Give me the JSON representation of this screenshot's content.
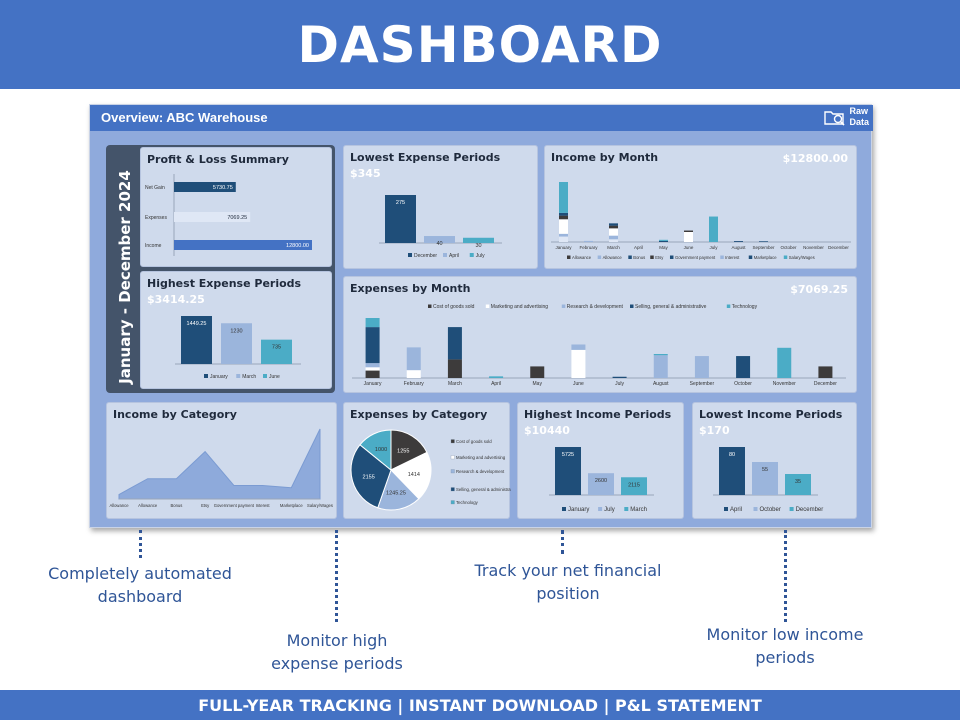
{
  "header": {
    "title": "DASHBOARD"
  },
  "footer": {
    "text": "FULL-YEAR TRACKING | INSTANT DOWNLOAD | P&L STATEMENT"
  },
  "dashboard": {
    "title": "Overview:  ABC Warehouse",
    "raw_data": {
      "line1": "Raw",
      "line2": "Data",
      "icon": "folder-search-icon"
    },
    "period": "January - December 2024"
  },
  "accent": "#4472c4",
  "colors": {
    "navy": "#1f4e79",
    "light": "#9bb5dc",
    "teal": "#4bacc6",
    "dark": "#3d3b3b",
    "pale": "#dfe7f5",
    "white": "#ffffff"
  },
  "pl_summary": {
    "title": "Profit & Loss Summary",
    "chart_data": {
      "type": "bar",
      "orientation": "horizontal",
      "categories": [
        "Net Gain",
        "Expenses",
        "Income"
      ],
      "values": [
        5730.75,
        7069.25,
        12800.0
      ],
      "labels": [
        "5730.75",
        "7069.25",
        "12800.00"
      ]
    }
  },
  "highest_expense": {
    "title": "Highest Expense Periods",
    "value": "$3414.25",
    "chart_data": {
      "type": "bar",
      "categories": [
        "January",
        "March",
        "June"
      ],
      "values": [
        1449.25,
        1230,
        735
      ],
      "labels": [
        "1449.25",
        "1230",
        "735"
      ]
    }
  },
  "lowest_expense": {
    "title": "Lowest Expense Periods",
    "value": "$345",
    "chart_data": {
      "type": "bar",
      "categories": [
        "December",
        "April",
        "July"
      ],
      "values": [
        275,
        40,
        30
      ],
      "labels": [
        "275",
        "40",
        "30"
      ]
    }
  },
  "income_month": {
    "title": "Income by Month",
    "value": "$12800.00",
    "chart_data": {
      "type": "bar",
      "stacked": true,
      "categories": [
        "January",
        "February",
        "March",
        "April",
        "May",
        "June",
        "July",
        "August",
        "September",
        "October",
        "November",
        "December"
      ],
      "legend": [
        "Allowance",
        "Allowance",
        "Bonus",
        "Etsy",
        "Government payment",
        "Interest",
        "Marketplace",
        "Salary/Wages"
      ],
      "series": [
        {
          "color": "#dfe7f5",
          "values": [
            300,
            0,
            150,
            0,
            0,
            0,
            0,
            0,
            0,
            0,
            0,
            0
          ]
        },
        {
          "color": "#9bb5dc",
          "values": [
            150,
            60,
            200,
            0,
            0,
            0,
            0,
            0,
            0,
            0,
            0,
            0
          ]
        },
        {
          "color": "#ffffff",
          "values": [
            800,
            0,
            400,
            0,
            0,
            550,
            0,
            0,
            0,
            0,
            0,
            0
          ]
        },
        {
          "color": "#3d3b3b",
          "values": [
            200,
            0,
            150,
            0,
            0,
            80,
            0,
            0,
            0,
            0,
            0,
            0
          ]
        },
        {
          "color": "#1f4e79",
          "values": [
            150,
            0,
            125,
            0,
            60,
            0,
            0,
            50,
            40,
            0,
            0,
            0
          ]
        },
        {
          "color": "#4bacc6",
          "values": [
            1700,
            0,
            0,
            0,
            60,
            0,
            1400,
            0,
            0,
            0,
            0,
            0
          ]
        }
      ]
    }
  },
  "expenses_month": {
    "title": "Expenses by Month",
    "value": "$7069.25",
    "chart_data": {
      "type": "bar",
      "stacked": true,
      "legend": [
        "Cost of goods sold",
        "Marketing and advertising",
        "Research & development",
        "Selling, general & administrative",
        "Technology"
      ],
      "categories": [
        "January",
        "February",
        "March",
        "April",
        "May",
        "June",
        "July",
        "August",
        "September",
        "October",
        "November",
        "December"
      ],
      "series": [
        {
          "color": "#3d3b3b",
          "values": [
            180,
            0,
            450,
            0,
            280,
            0,
            0,
            0,
            0,
            0,
            0,
            280
          ]
        },
        {
          "color": "#ffffff",
          "values": [
            80,
            190,
            0,
            0,
            0,
            680,
            0,
            0,
            0,
            0,
            0,
            0
          ]
        },
        {
          "color": "#9bb5dc",
          "values": [
            100,
            550,
            0,
            0,
            0,
            130,
            0,
            550,
            530,
            0,
            0,
            0
          ]
        },
        {
          "color": "#1f4e79",
          "values": [
            870,
            0,
            780,
            0,
            0,
            0,
            30,
            0,
            0,
            530,
            0,
            0
          ]
        },
        {
          "color": "#4bacc6",
          "values": [
            220,
            0,
            0,
            40,
            0,
            0,
            0,
            30,
            0,
            0,
            730,
            0
          ]
        }
      ]
    }
  },
  "income_category": {
    "title": "Income by Category",
    "chart_data": {
      "type": "area",
      "categories": [
        "Allowance",
        "Allowance",
        "Bonus",
        "Etsy",
        "Government payment",
        "Interest",
        "Marketplace",
        "Salary/Wages"
      ],
      "values": [
        400,
        1800,
        1800,
        4200,
        1200,
        1200,
        1000,
        6200
      ]
    }
  },
  "expenses_category": {
    "title": "Expenses by Category",
    "chart_data": {
      "type": "pie",
      "categories": [
        "Cost of goods sold",
        "Marketing and advertising",
        "Research & development",
        "Selling, general & administrative",
        "Technology"
      ],
      "values": [
        1255,
        1414,
        1245.25,
        2155,
        1000
      ],
      "labels": [
        "1255",
        "1414",
        "1245.25",
        "2155",
        "1000"
      ],
      "colors": [
        "#3d3b3b",
        "#ffffff",
        "#9bb5dc",
        "#1f4e79",
        "#4bacc6"
      ]
    }
  },
  "highest_income": {
    "title": "Highest Income Periods",
    "value": "$10440",
    "chart_data": {
      "type": "bar",
      "categories": [
        "January",
        "July",
        "March"
      ],
      "values": [
        5725,
        2600,
        2115
      ],
      "labels": [
        "5725",
        "2600",
        "2115"
      ]
    }
  },
  "lowest_income": {
    "title": "Lowest Income Periods",
    "value": "$170",
    "chart_data": {
      "type": "bar",
      "categories": [
        "April",
        "October",
        "December"
      ],
      "values": [
        80,
        55,
        35
      ],
      "labels": [
        "80",
        "55",
        "35"
      ]
    }
  },
  "callouts": [
    "Completely automated dashboard",
    "Monitor high expense periods",
    "Track your net financial position",
    "Monitor low income periods"
  ]
}
